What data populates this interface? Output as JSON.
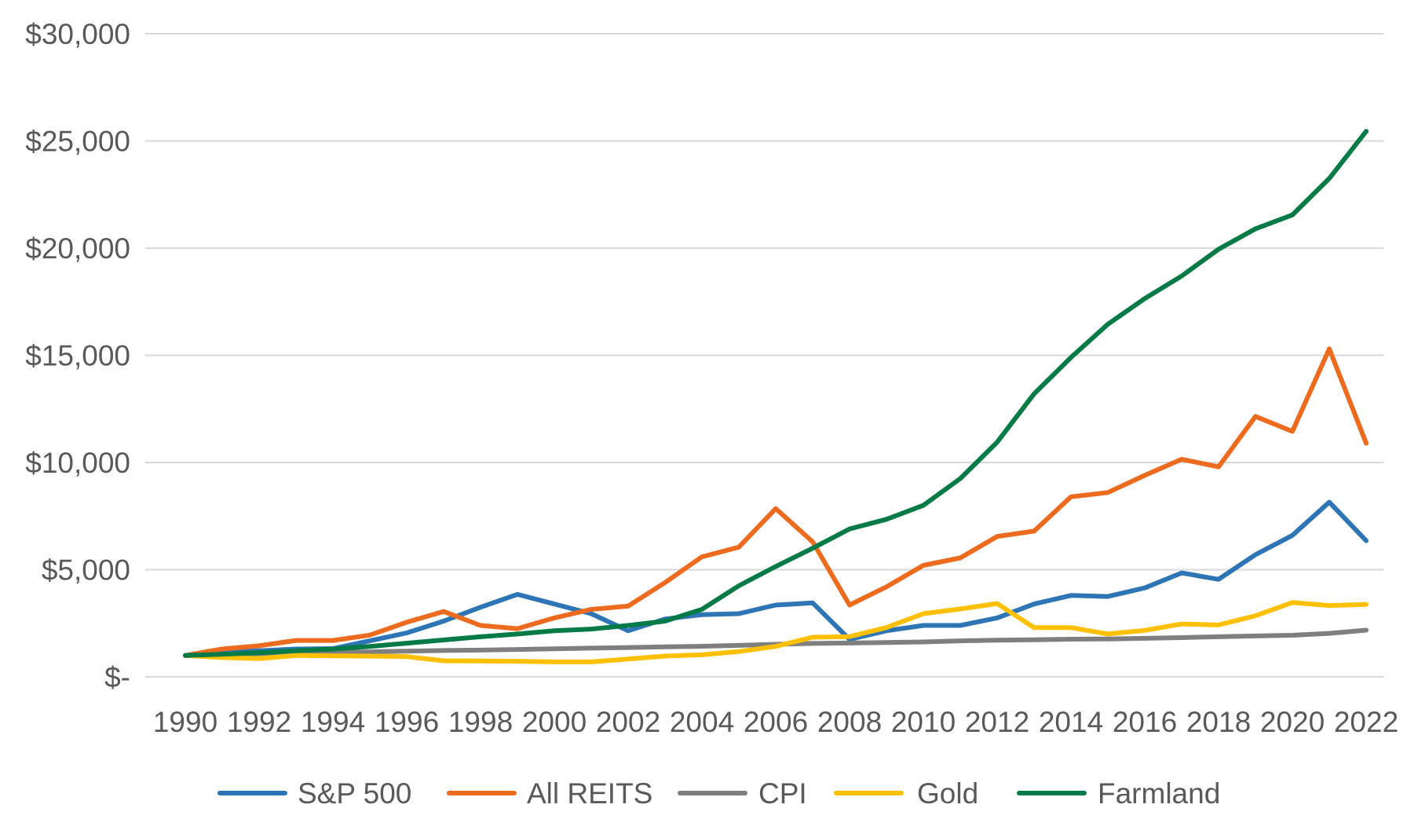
{
  "chart_data": {
    "type": "line",
    "title": "",
    "xlabel": "",
    "ylabel": "",
    "ylim": [
      0,
      30000
    ],
    "y_ticks": [
      0,
      5000,
      10000,
      15000,
      20000,
      25000,
      30000
    ],
    "y_tick_labels": [
      "$-",
      "$5,000",
      "$10,000",
      "$15,000",
      "$20,000",
      "$25,000",
      "$30,000"
    ],
    "x": [
      1990,
      1991,
      1992,
      1993,
      1994,
      1995,
      1996,
      1997,
      1998,
      1999,
      2000,
      2001,
      2002,
      2003,
      2004,
      2005,
      2006,
      2007,
      2008,
      2009,
      2010,
      2011,
      2012,
      2013,
      2014,
      2015,
      2016,
      2017,
      2018,
      2019,
      2020,
      2021,
      2022
    ],
    "x_tick_labels": [
      "1990",
      "1992",
      "1994",
      "1996",
      "1998",
      "2000",
      "2002",
      "2004",
      "2006",
      "2008",
      "2010",
      "2012",
      "2014",
      "2016",
      "2018",
      "2020",
      "2022"
    ],
    "grid": "horizontal",
    "legend_position": "bottom",
    "series": [
      {
        "name": "S&P 500",
        "color": "#2e75b6",
        "values": [
          1000,
          1150,
          1220,
          1300,
          1320,
          1680,
          2050,
          2600,
          3250,
          3850,
          3400,
          2950,
          2150,
          2700,
          2900,
          2950,
          3350,
          3450,
          1750,
          2150,
          2400,
          2400,
          2750,
          3400,
          3800,
          3750,
          4150,
          4850,
          4550,
          5700,
          6600,
          8150,
          6350
        ]
      },
      {
        "name": "All REITS",
        "color": "#ed6b1e",
        "values": [
          1000,
          1300,
          1450,
          1700,
          1700,
          1950,
          2550,
          3050,
          2400,
          2250,
          2750,
          3150,
          3300,
          4400,
          5600,
          6050,
          7850,
          6300,
          3350,
          4200,
          5200,
          5550,
          6550,
          6800,
          8400,
          8600,
          9400,
          10150,
          9800,
          12150,
          11450,
          15300,
          10900
        ]
      },
      {
        "name": "CPI",
        "color": "#7f7f7f",
        "values": [
          1000,
          1040,
          1080,
          1110,
          1140,
          1170,
          1200,
          1230,
          1250,
          1280,
          1310,
          1340,
          1370,
          1400,
          1430,
          1470,
          1520,
          1560,
          1580,
          1600,
          1630,
          1680,
          1710,
          1730,
          1760,
          1770,
          1800,
          1830,
          1870,
          1910,
          1940,
          2030,
          2180
        ]
      },
      {
        "name": "Gold",
        "color": "#ffc000",
        "values": [
          1000,
          900,
          850,
          1000,
          980,
          970,
          950,
          750,
          740,
          730,
          700,
          700,
          830,
          970,
          1030,
          1180,
          1420,
          1850,
          1880,
          2300,
          2950,
          3170,
          3420,
          2300,
          2300,
          2000,
          2170,
          2470,
          2420,
          2850,
          3470,
          3330,
          3380
        ]
      },
      {
        "name": "Farmland",
        "color": "#047a46",
        "values": [
          1000,
          1060,
          1130,
          1220,
          1300,
          1420,
          1570,
          1720,
          1870,
          2000,
          2150,
          2230,
          2400,
          2600,
          3150,
          4250,
          5150,
          6000,
          6900,
          7350,
          8000,
          9250,
          10950,
          13200,
          14900,
          16450,
          17650,
          18700,
          19950,
          20900,
          21550,
          23250,
          25450
        ]
      }
    ]
  }
}
